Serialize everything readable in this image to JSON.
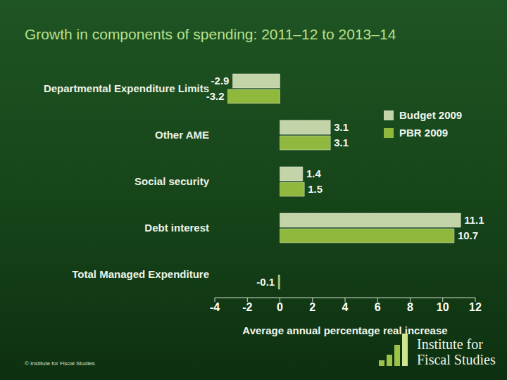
{
  "chart_data": {
    "type": "bar",
    "title": "Growth in components of spending: 2011–12 to 2013–14",
    "orientation": "horizontal",
    "categories": [
      "Departmental Expenditure Limits",
      "Other AME",
      "Social security",
      "Debt interest",
      "Total Managed Expenditure"
    ],
    "series": [
      {
        "name": "Budget 2009",
        "color": "#c3d4a8",
        "values": [
          -2.9,
          3.1,
          1.4,
          11.1,
          0
        ]
      },
      {
        "name": "PBR 2009",
        "color": "#8fb83c",
        "values": [
          -3.2,
          3.1,
          1.5,
          10.7,
          -0.1
        ]
      }
    ],
    "x_label": "Average annual percentage real increase",
    "xlim": [
      -4,
      12
    ],
    "xticks": [
      -4,
      -2,
      0,
      2,
      4,
      6,
      8,
      10,
      12
    ],
    "grid": false,
    "legend": "upper right",
    "data_labels": true,
    "annotations": [
      "© Institute for Fiscal Studies",
      "Institute for Fiscal Studies"
    ]
  }
}
